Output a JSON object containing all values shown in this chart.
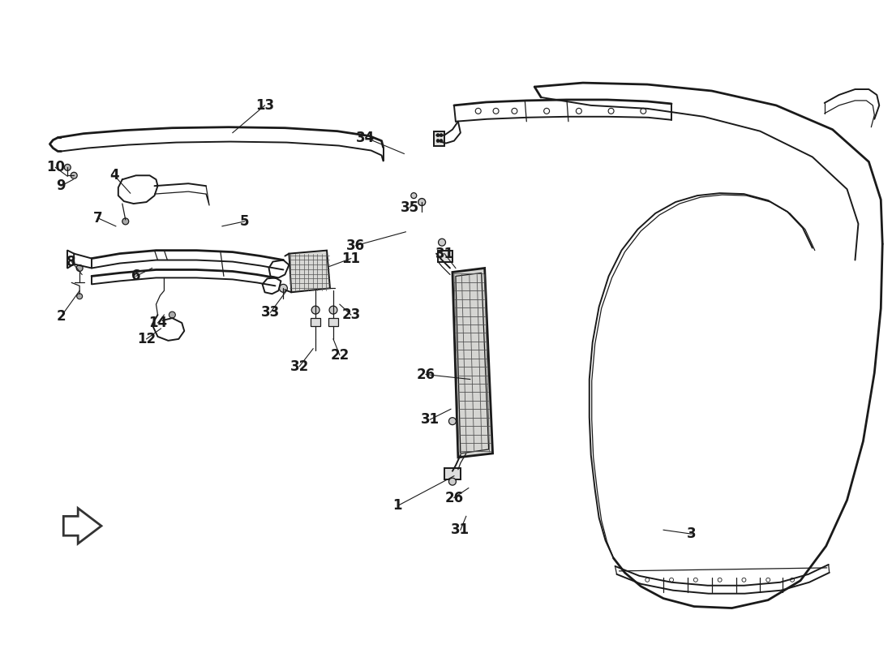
{
  "bg_color": "#ffffff",
  "line_color": "#1a1a1a",
  "lw_thick": 2.0,
  "lw_med": 1.4,
  "lw_thin": 0.9,
  "font_size": 12,
  "callouts": [
    [
      "1",
      490,
      625,
      560,
      588
    ],
    [
      "2",
      72,
      390,
      95,
      358
    ],
    [
      "3",
      855,
      660,
      820,
      655
    ],
    [
      "4",
      138,
      215,
      158,
      237
    ],
    [
      "5",
      300,
      272,
      272,
      278
    ],
    [
      "6",
      165,
      340,
      185,
      330
    ],
    [
      "7",
      118,
      268,
      140,
      278
    ],
    [
      "8",
      85,
      322,
      98,
      338
    ],
    [
      "9",
      72,
      228,
      87,
      220
    ],
    [
      "10",
      65,
      205,
      80,
      216
    ],
    [
      "11",
      432,
      318,
      405,
      328
    ],
    [
      "12",
      178,
      418,
      196,
      405
    ],
    [
      "13",
      325,
      128,
      285,
      162
    ],
    [
      "14",
      192,
      398,
      200,
      388
    ],
    [
      "22",
      418,
      438,
      410,
      418
    ],
    [
      "23",
      432,
      388,
      418,
      375
    ],
    [
      "26",
      525,
      462,
      580,
      468
    ],
    [
      "26",
      560,
      615,
      578,
      603
    ],
    [
      "31",
      548,
      312,
      562,
      330
    ],
    [
      "31",
      530,
      518,
      556,
      505
    ],
    [
      "31",
      568,
      655,
      575,
      638
    ],
    [
      "32",
      368,
      452,
      385,
      430
    ],
    [
      "33",
      332,
      385,
      352,
      358
    ],
    [
      "34",
      450,
      168,
      498,
      188
    ],
    [
      "35",
      505,
      255,
      510,
      248
    ],
    [
      "36",
      438,
      302,
      500,
      285
    ]
  ]
}
